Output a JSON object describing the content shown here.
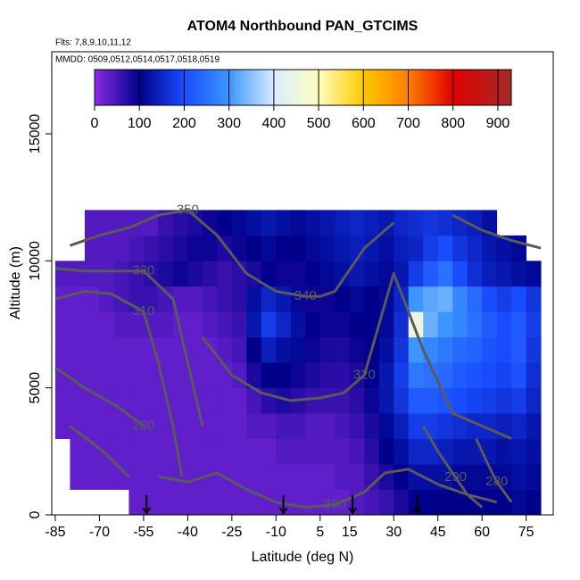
{
  "chart_data": {
    "type": "heatmap",
    "title": "ATOM4 Northbound PAN_GTCIMS",
    "subtitle": "Flts: 7,8,9,10,11,12",
    "annotation": "MMDD: 0509,0512,0514,0517,0518,0519",
    "x_label": "Latitude (deg N)",
    "y_label": "Altitude (m)",
    "xlim": [
      -86.2,
      84.2
    ],
    "ylim": [
      0,
      18230
    ],
    "xticks": [
      -85,
      -70,
      -55,
      -40,
      -25,
      -10,
      5,
      15,
      30,
      45,
      60,
      75
    ],
    "yticks": [
      0,
      5000,
      10000,
      15000
    ],
    "x_bins": [
      -85,
      -80,
      -75,
      -70,
      -65,
      -60,
      -55,
      -50,
      -45,
      -40,
      -35,
      -30,
      -25,
      -20,
      -15,
      -10,
      -5,
      0,
      5,
      10,
      15,
      20,
      25,
      30,
      35,
      40,
      45,
      50,
      55,
      60,
      65,
      70,
      75,
      80
    ],
    "y_bins": [
      0,
      1000,
      2000,
      3000,
      4000,
      5000,
      6000,
      7000,
      8000,
      9000,
      10000,
      11000,
      12000
    ],
    "z": [
      [
        null,
        null,
        null,
        null,
        null,
        30,
        30,
        30,
        30,
        30,
        30,
        30,
        30,
        30,
        30,
        30,
        30,
        30,
        30,
        30,
        40,
        50,
        60,
        80,
        100,
        100,
        100,
        100,
        100,
        100,
        100,
        110,
        100
      ],
      [
        null,
        30,
        30,
        30,
        30,
        30,
        30,
        30,
        30,
        30,
        30,
        30,
        30,
        30,
        30,
        30,
        30,
        30,
        30,
        40,
        40,
        60,
        80,
        100,
        120,
        120,
        120,
        110,
        110,
        110,
        110,
        120,
        110
      ],
      [
        null,
        30,
        30,
        30,
        30,
        30,
        30,
        30,
        30,
        30,
        30,
        30,
        30,
        30,
        30,
        40,
        40,
        40,
        40,
        40,
        50,
        70,
        100,
        120,
        150,
        150,
        140,
        130,
        130,
        130,
        120,
        130,
        120
      ],
      [
        30,
        30,
        30,
        30,
        30,
        30,
        30,
        30,
        30,
        30,
        30,
        30,
        30,
        40,
        40,
        50,
        50,
        40,
        40,
        50,
        60,
        80,
        110,
        140,
        180,
        180,
        170,
        160,
        150,
        150,
        140,
        150,
        130
      ],
      [
        30,
        30,
        30,
        30,
        30,
        30,
        30,
        30,
        30,
        30,
        30,
        30,
        30,
        50,
        70,
        80,
        70,
        60,
        60,
        60,
        70,
        90,
        130,
        170,
        220,
        220,
        210,
        200,
        190,
        180,
        170,
        180,
        150
      ],
      [
        30,
        30,
        30,
        30,
        30,
        30,
        30,
        30,
        30,
        30,
        30,
        30,
        40,
        80,
        100,
        100,
        90,
        80,
        70,
        70,
        80,
        100,
        130,
        180,
        260,
        250,
        240,
        220,
        210,
        200,
        190,
        210,
        160
      ],
      [
        30,
        30,
        30,
        30,
        30,
        30,
        30,
        30,
        30,
        30,
        30,
        40,
        50,
        100,
        140,
        120,
        110,
        90,
        80,
        80,
        90,
        100,
        120,
        170,
        300,
        280,
        260,
        240,
        230,
        210,
        200,
        220,
        170
      ],
      [
        30,
        30,
        30,
        30,
        40,
        40,
        40,
        40,
        30,
        30,
        40,
        50,
        60,
        130,
        180,
        150,
        120,
        100,
        90,
        90,
        100,
        100,
        110,
        160,
        450,
        330,
        300,
        280,
        250,
        220,
        200,
        220,
        180
      ],
      [
        30,
        30,
        30,
        40,
        50,
        60,
        60,
        50,
        40,
        40,
        50,
        60,
        70,
        120,
        150,
        130,
        110,
        90,
        90,
        100,
        110,
        100,
        110,
        150,
        300,
        320,
        330,
        280,
        240,
        200,
        180,
        200,
        170
      ],
      [
        40,
        40,
        40,
        40,
        50,
        60,
        70,
        80,
        90,
        80,
        70,
        60,
        70,
        80,
        100,
        90,
        90,
        100,
        110,
        120,
        130,
        120,
        110,
        130,
        180,
        220,
        250,
        200,
        160,
        140,
        130,
        120,
        110
      ],
      [
        null,
        null,
        40,
        40,
        40,
        50,
        60,
        70,
        80,
        90,
        90,
        80,
        90,
        100,
        110,
        100,
        100,
        110,
        120,
        130,
        140,
        130,
        120,
        140,
        150,
        180,
        200,
        170,
        150,
        130,
        120,
        110,
        null
      ],
      [
        null,
        null,
        40,
        40,
        40,
        40,
        40,
        60,
        70,
        80,
        90,
        100,
        110,
        120,
        130,
        120,
        110,
        120,
        130,
        140,
        150,
        140,
        130,
        150,
        160,
        170,
        160,
        150,
        140,
        120,
        null,
        null,
        null
      ]
    ],
    "colorbar": {
      "lim": [
        0,
        930
      ],
      "ticks": [
        0,
        100,
        200,
        300,
        400,
        500,
        600,
        700,
        800,
        900
      ],
      "stops": [
        {
          "value": 0,
          "color": "#8b2be6"
        },
        {
          "value": 100,
          "color": "#00008b"
        },
        {
          "value": 200,
          "color": "#1a4cff"
        },
        {
          "value": 300,
          "color": "#3c96ff"
        },
        {
          "value": 400,
          "color": "#d8ecff"
        },
        {
          "value": 500,
          "color": "#ffffc0"
        },
        {
          "value": 600,
          "color": "#ffc800"
        },
        {
          "value": 700,
          "color": "#ff7f00"
        },
        {
          "value": 800,
          "color": "#e00000"
        },
        {
          "value": 930,
          "color": "#a52a2a"
        }
      ]
    },
    "contour_color": "#5a5a5a",
    "contours": [
      {
        "level": 350,
        "x": [
          -80,
          -70,
          -60,
          -50,
          -40,
          null,
          50,
          60,
          70,
          80
        ],
        "y": [
          10600,
          11000,
          11300,
          11800,
          12000,
          null,
          11800,
          11200,
          10800,
          10500
        ]
      },
      {
        "level": 340,
        "x": [
          -40,
          -30,
          -20,
          -10,
          0,
          5,
          10,
          20,
          30
        ],
        "y": [
          12000,
          11000,
          9500,
          8800,
          8600,
          8600,
          8800,
          10500,
          11500
        ]
      },
      {
        "level": 330,
        "x": [
          -85,
          -75,
          -65,
          -55,
          -45,
          -40,
          -35
        ],
        "y": [
          9700,
          9600,
          9600,
          9600,
          8500,
          6000,
          3500
        ]
      },
      {
        "level": 320,
        "x": [
          -35,
          -25,
          -15,
          -5,
          5,
          13,
          20,
          25,
          30,
          40,
          50,
          60,
          70
        ],
        "y": [
          7000,
          5500,
          4800,
          4500,
          4600,
          4800,
          5500,
          7500,
          9500,
          6500,
          4000,
          3500,
          3000
        ]
      },
      {
        "level": 310,
        "x": [
          -85,
          -75,
          -66,
          -55,
          -50,
          -45,
          -42
        ],
        "y": [
          8500,
          8800,
          8700,
          8000,
          6000,
          3500,
          1500
        ]
      },
      {
        "level": 300,
        "x": [
          -50,
          -40,
          -30,
          -20,
          -10,
          0,
          10,
          20,
          27,
          35,
          45,
          55,
          65
        ],
        "y": [
          1500,
          1300,
          1650,
          1000,
          500,
          300,
          400,
          900,
          1650,
          1800,
          1200,
          800,
          500
        ]
      },
      {
        "level": 290,
        "x": [
          40,
          45,
          51,
          55,
          60
        ],
        "y": [
          3500,
          2500,
          1475,
          800,
          300
        ]
      },
      {
        "level": 280,
        "x": [
          -85,
          -75,
          -64,
          -55,
          null,
          -80,
          -69,
          -60
        ],
        "y": [
          5800,
          5000,
          4280,
          3500,
          null,
          3500,
          2530,
          1500
        ]
      },
      {
        "level": 280,
        "x": [
          58,
          62,
          65,
          70
        ],
        "y": [
          3000,
          2000,
          1300,
          500
        ]
      }
    ],
    "arrow_lats": [
      -54,
      -7.5,
      16,
      38
    ]
  }
}
